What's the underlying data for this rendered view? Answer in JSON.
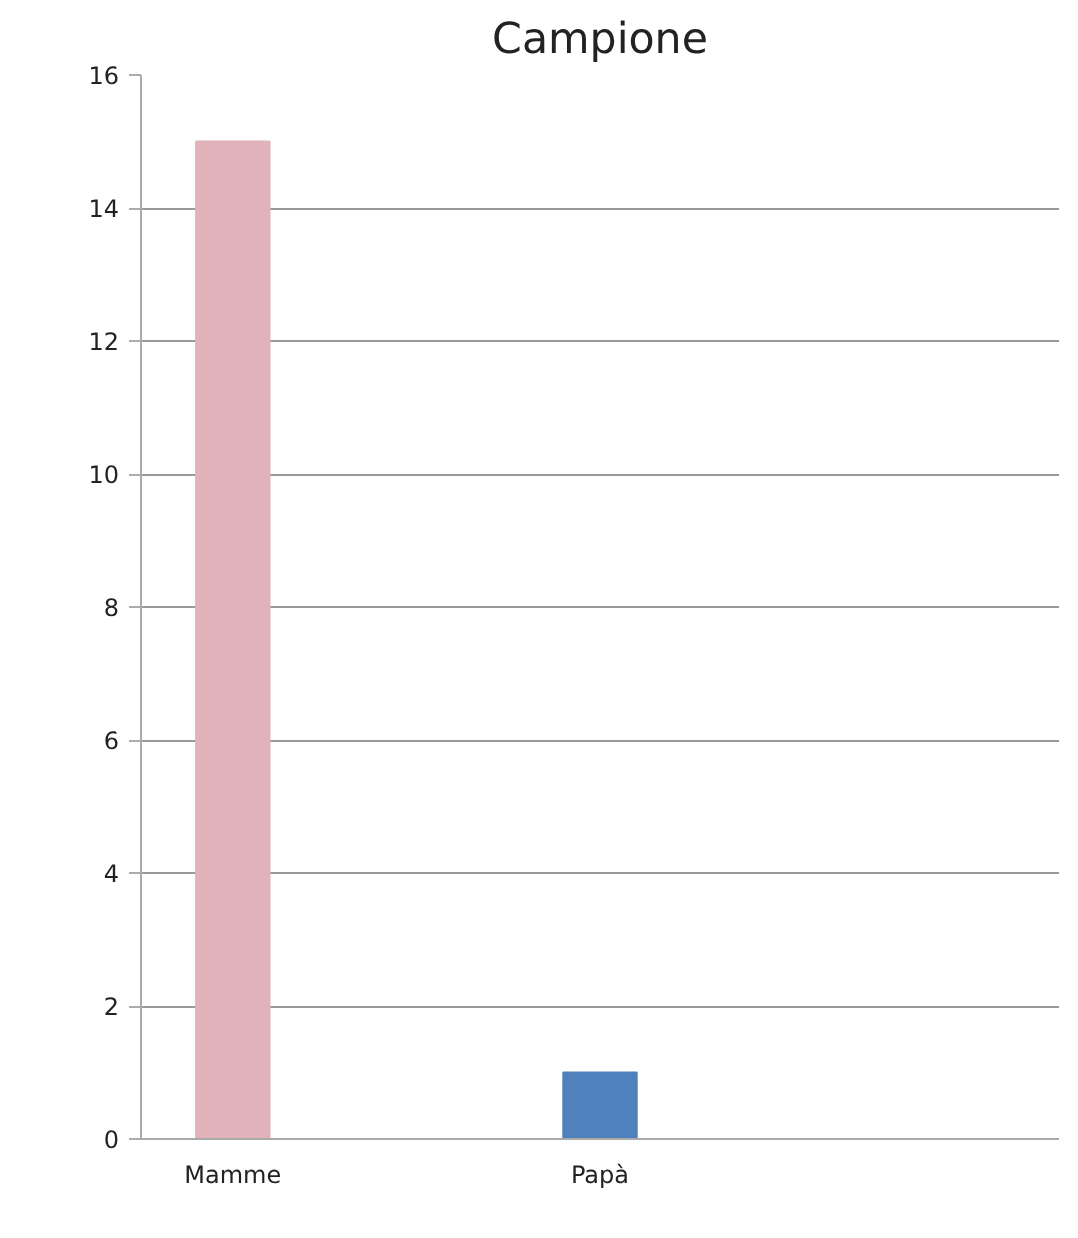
{
  "chart_data": {
    "type": "bar",
    "title": "Campione",
    "categories": [
      "Mamme",
      null,
      "Papà",
      null,
      null
    ],
    "values": [
      15,
      null,
      1,
      null,
      null
    ],
    "colors": [
      "#e2b2ba",
      "#e2b2ba",
      "#4f81bd",
      "#4f81bd",
      "#4f81bd"
    ],
    "ylim": [
      0,
      16
    ],
    "yticks": [
      0,
      2,
      4,
      6,
      8,
      10,
      12,
      14,
      16
    ],
    "grid": "y"
  }
}
